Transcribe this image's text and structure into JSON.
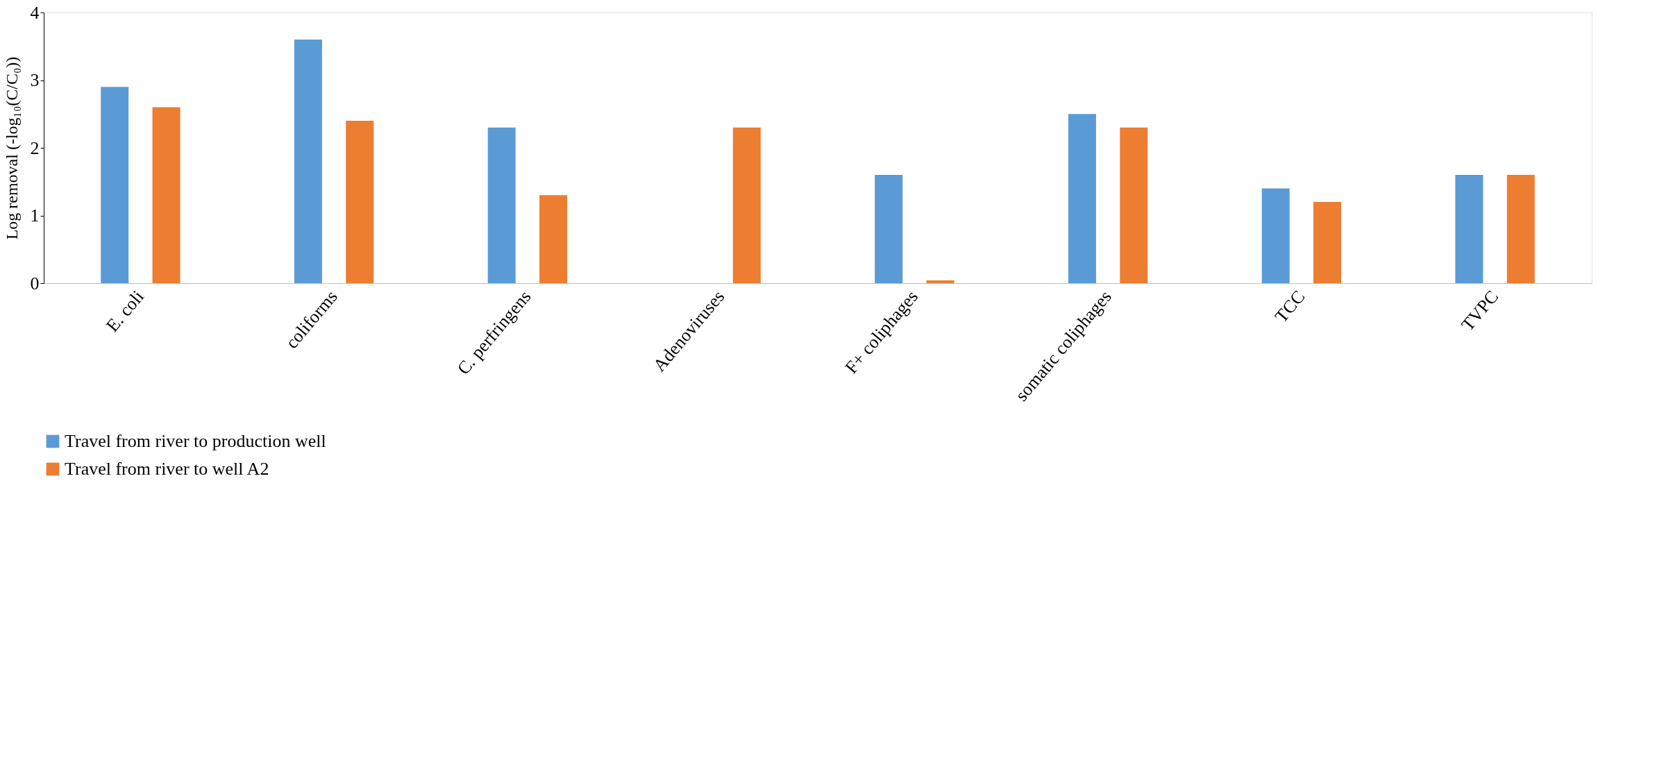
{
  "chart_data": {
    "type": "bar",
    "ylabel": "Log removal (-log₁₀(C/C₀))",
    "categories": [
      "E. coli",
      "coliforms",
      "C. perfringens",
      "Adenoviruses",
      "F+ coliphages",
      "somatic coliphages",
      "TCC",
      "TVPC"
    ],
    "series": [
      {
        "name": "Travel from river to production well",
        "color": "#5b9bd5",
        "values": [
          2.9,
          3.6,
          2.3,
          null,
          1.6,
          2.5,
          1.4,
          1.6
        ]
      },
      {
        "name": "Travel from river to well A2",
        "color": "#ed7d31",
        "values": [
          2.6,
          2.4,
          1.3,
          2.3,
          0.04,
          2.3,
          1.2,
          1.6
        ]
      }
    ],
    "ylim": [
      0,
      4
    ],
    "yticks": [
      0,
      1,
      2,
      3,
      4
    ],
    "grid": false,
    "legend": "bottom"
  }
}
